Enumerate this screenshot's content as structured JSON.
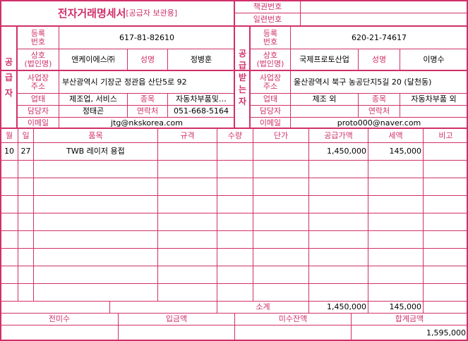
{
  "title": {
    "main": "전자거래명세서",
    "sub": "[공급자 보관용]"
  },
  "header_right": {
    "book_no_label": "책권번호",
    "book_no": "",
    "serial_no_label": "일련번호",
    "serial_no": ""
  },
  "supplier": {
    "side_label": [
      "공",
      "급",
      "자"
    ],
    "reg_no_label": [
      "등록",
      "번호"
    ],
    "reg_no": "617-81-82610",
    "company_label": [
      "상호",
      "(법인명)"
    ],
    "company": "엔케이에스㈜",
    "name_label": "성명",
    "name": "정병훈",
    "address_label": [
      "사업장",
      "주소"
    ],
    "address": "부산광역시 기장군 정관읍 산단5로 92",
    "business_type_label": "업태",
    "business_type": "제조업, 서비스",
    "item_type_label": "종목",
    "item_type": "자동차부품및…",
    "contact_person_label": "담당자",
    "contact_person": "정태곤",
    "phone_label": "연락처",
    "phone": "051-668-5164",
    "email_label": "이메일",
    "email": "jtg@nkskorea.com"
  },
  "receiver": {
    "side_label": [
      "공",
      "급",
      "받",
      "는",
      "자"
    ],
    "reg_no_label": [
      "등록",
      "번호"
    ],
    "reg_no": "620-21-74617",
    "company_label": [
      "상호",
      "(법인명)"
    ],
    "company": "국제프로토산업",
    "name_label": "성명",
    "name": "이명수",
    "address_label": [
      "사업장",
      "주소"
    ],
    "address": "울산광역시 북구 농공단지5길 20 (달천동)",
    "business_type_label": "업태",
    "business_type": "제조 외",
    "item_type_label": "종목",
    "item_type": "자동차부품 외",
    "contact_person_label": "담당자",
    "contact_person": "",
    "phone_label": "연락처",
    "phone": "",
    "email_label": "이메일",
    "email": "proto000@naver.com"
  },
  "items": {
    "columns": [
      "월",
      "일",
      "품목",
      "규격",
      "수량",
      "단가",
      "공급가액",
      "세액",
      "비고"
    ],
    "rows": [
      [
        "10",
        "27",
        "TWB 레이저 용접",
        "",
        "",
        "",
        "1,450,000",
        "145,000",
        ""
      ],
      [
        "",
        "",
        "",
        "",
        "",
        "",
        "",
        "",
        ""
      ],
      [
        "",
        "",
        "",
        "",
        "",
        "",
        "",
        "",
        ""
      ],
      [
        "",
        "",
        "",
        "",
        "",
        "",
        "",
        "",
        ""
      ],
      [
        "",
        "",
        "",
        "",
        "",
        "",
        "",
        "",
        ""
      ],
      [
        "",
        "",
        "",
        "",
        "",
        "",
        "",
        "",
        ""
      ],
      [
        "",
        "",
        "",
        "",
        "",
        "",
        "",
        "",
        ""
      ],
      [
        "",
        "",
        "",
        "",
        "",
        "",
        "",
        "",
        ""
      ],
      [
        "",
        "",
        "",
        "",
        "",
        "",
        "",
        "",
        ""
      ]
    ]
  },
  "subtotal": {
    "label": "소계",
    "supply": "1,450,000",
    "tax": "145,000"
  },
  "totals": {
    "prev_unpaid_label": "전미수",
    "prev_unpaid": "",
    "deposit_label": "입금액",
    "deposit": "",
    "balance_label": "미수잔액",
    "balance": "",
    "total_label": "합계금액",
    "total": "1,595,000"
  }
}
